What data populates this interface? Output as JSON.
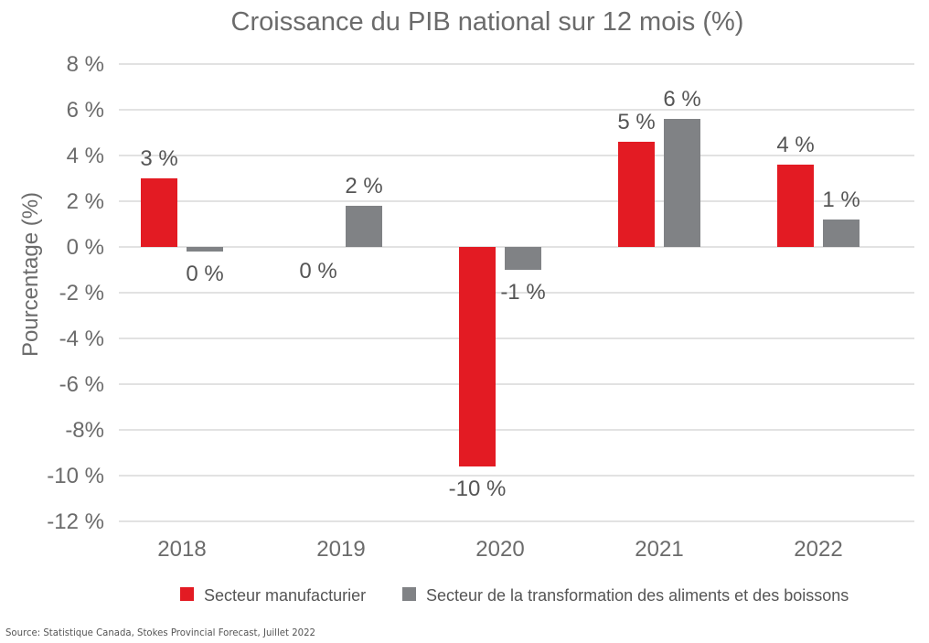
{
  "chart_data": {
    "type": "bar",
    "title": "Croissance du PIB national sur 12 mois (%)",
    "xlabel": "",
    "ylabel": "Pourcentage (%)",
    "categories": [
      "2018",
      "2019",
      "2020",
      "2021",
      "2022"
    ],
    "ylim": [
      -12,
      8
    ],
    "yticks": [
      8,
      6,
      4,
      2,
      0,
      -2,
      -4,
      -6,
      -8,
      -10,
      -12
    ],
    "ytick_labels": [
      "8 %",
      "6 %",
      "4 %",
      "2 %",
      "0 %",
      "-2 %",
      "-4 %",
      "-6 %",
      "-8%",
      "-10 %",
      "-12 %"
    ],
    "grid": true,
    "legend_position": "bottom",
    "series": [
      {
        "name": "Secteur manufacturier",
        "color": "#e31b23",
        "values": [
          3.0,
          0.0,
          -9.6,
          4.6,
          3.6
        ],
        "labels": [
          "3 %",
          "0 %",
          "-10 %",
          "5 %",
          "4 %"
        ]
      },
      {
        "name": "Secteur de la transformation des aliments et des boissons",
        "color": "#808285",
        "values": [
          -0.2,
          1.8,
          -1.0,
          5.6,
          1.2
        ],
        "labels": [
          "0 %",
          "2 %",
          "-1 %",
          "6 %",
          "1 %"
        ]
      }
    ]
  },
  "source": "Source: Statistique Canada, Stokes Provincial Forecast, Juillet 2022"
}
